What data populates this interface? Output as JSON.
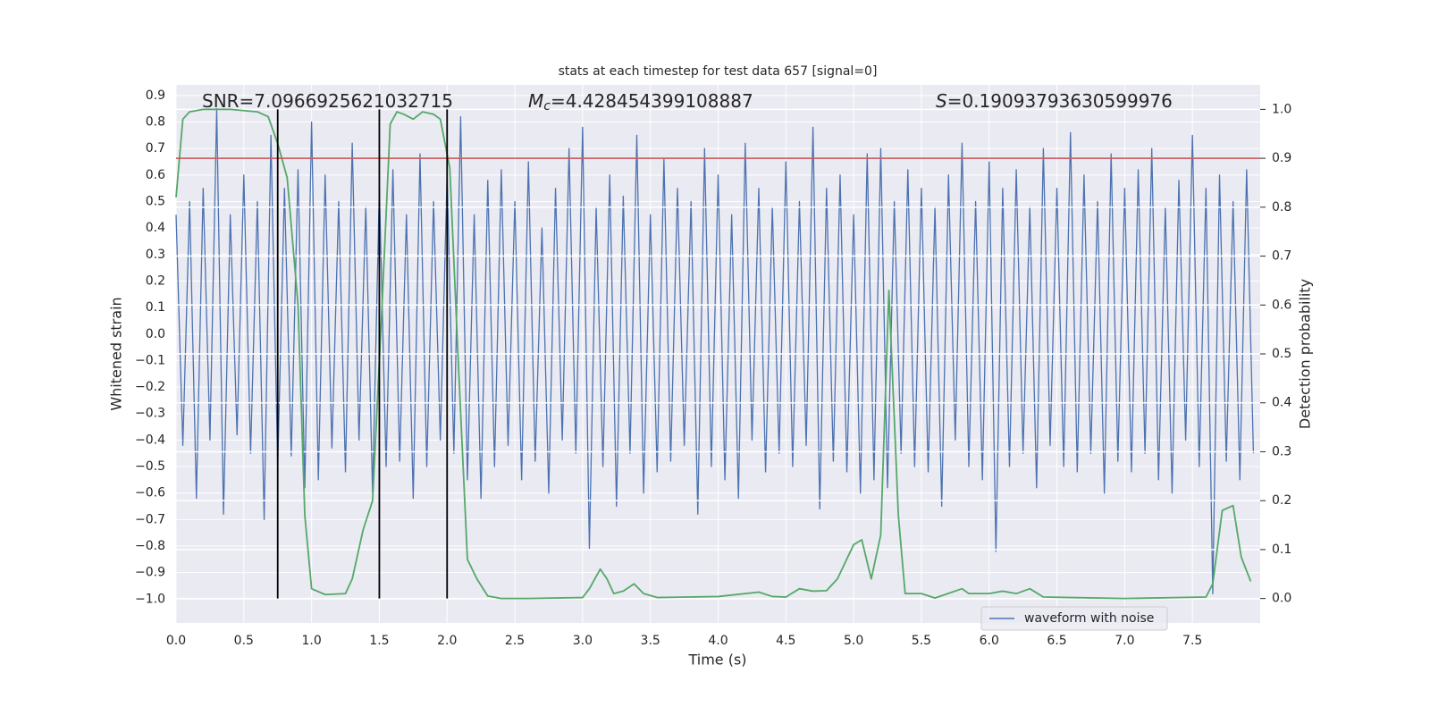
{
  "chart_data": {
    "type": "line",
    "title": "stats at each timestep for test data 657 [signal=0]",
    "xlabel": "Time (s)",
    "ylabel": "Whitened strain",
    "y2label": "Detection probability",
    "xlim": [
      0,
      8
    ],
    "ylim": [
      -1.09,
      0.94
    ],
    "y2lim": [
      -0.05,
      1.05
    ],
    "xticks": [
      {
        "value": 0,
        "label": "0.0"
      },
      0.5,
      {
        "value": 1,
        "label": "1.0"
      },
      1.5,
      {
        "value": 2,
        "label": "2.0"
      },
      2.5,
      {
        "value": 3,
        "label": "3.0"
      },
      3.5,
      {
        "value": 4,
        "label": "4.0"
      },
      4.5,
      {
        "value": 5,
        "label": "5.0"
      },
      5.5,
      {
        "value": 6,
        "label": "6.0"
      },
      6.5,
      {
        "value": 7,
        "label": "7.0"
      },
      7.5
    ],
    "yticks": [
      {
        "value": -1,
        "label": "−1.0"
      },
      {
        "value": -0.9,
        "label": "−0.9"
      },
      {
        "value": -0.8,
        "label": "−0.8"
      },
      {
        "value": -0.7,
        "label": "−0.7"
      },
      {
        "value": -0.6,
        "label": "−0.6"
      },
      {
        "value": -0.5,
        "label": "−0.5"
      },
      {
        "value": -0.4,
        "label": "−0.4"
      },
      {
        "value": -0.3,
        "label": "−0.3"
      },
      {
        "value": -0.2,
        "label": "−0.2"
      },
      {
        "value": -0.1,
        "label": "−0.1"
      },
      {
        "value": 0,
        "label": "0.0"
      },
      0.1,
      0.2,
      0.3,
      0.4,
      0.5,
      0.6,
      0.7,
      0.8,
      0.9
    ],
    "y2ticks": [
      {
        "value": 0,
        "label": "0.0"
      },
      0.1,
      0.2,
      0.3,
      0.4,
      0.5,
      0.6,
      0.7,
      0.8,
      0.9,
      {
        "value": 1,
        "label": "1.0"
      }
    ],
    "grid": true,
    "legend": "lower right",
    "annotations": [
      {
        "text": "SNR=7.0966925621032715"
      },
      {
        "symbol": "M",
        "subscript": "c",
        "text": "=4.428454399108887"
      },
      {
        "symbol": "S",
        "text": "=0.19093793630599976"
      }
    ],
    "series": [
      {
        "name": "waveform with noise",
        "color": "#4c72b0",
        "x": [
          0,
          0.05,
          0.1,
          0.15,
          0.2,
          0.25,
          0.3,
          0.35,
          0.4,
          0.45,
          0.5,
          0.55,
          0.6,
          0.65,
          0.7,
          0.75,
          0.8,
          0.85,
          0.9,
          0.95,
          1,
          1.05,
          1.1,
          1.15,
          1.2,
          1.25,
          1.3,
          1.35,
          1.4,
          1.45,
          1.5,
          1.55,
          1.6,
          1.65,
          1.7,
          1.75,
          1.8,
          1.85,
          1.9,
          1.95,
          2,
          2.05,
          2.1,
          2.15,
          2.2,
          2.25,
          2.3,
          2.35,
          2.4,
          2.45,
          2.5,
          2.55,
          2.6,
          2.65,
          2.7,
          2.75,
          2.8,
          2.85,
          2.9,
          2.95,
          3,
          3.05,
          3.1,
          3.15,
          3.2,
          3.25,
          3.3,
          3.35,
          3.4,
          3.45,
          3.5,
          3.55,
          3.6,
          3.65,
          3.7,
          3.75,
          3.8,
          3.85,
          3.9,
          3.95,
          4,
          4.05,
          4.1,
          4.15,
          4.2,
          4.25,
          4.3,
          4.35,
          4.4,
          4.45,
          4.5,
          4.55,
          4.6,
          4.65,
          4.7,
          4.75,
          4.8,
          4.85,
          4.9,
          4.95,
          5,
          5.05,
          5.1,
          5.15,
          5.2,
          5.25,
          5.3,
          5.35,
          5.4,
          5.45,
          5.5,
          5.55,
          5.6,
          5.65,
          5.7,
          5.75,
          5.8,
          5.85,
          5.9,
          5.95,
          6,
          6.05,
          6.1,
          6.15,
          6.2,
          6.25,
          6.3,
          6.35,
          6.4,
          6.45,
          6.5,
          6.55,
          6.6,
          6.65,
          6.7,
          6.75,
          6.8,
          6.85,
          6.9,
          6.95,
          7,
          7.05,
          7.1,
          7.15,
          7.2,
          7.25,
          7.3,
          7.35,
          7.4,
          7.45,
          7.5,
          7.55,
          7.6,
          7.65,
          7.7,
          7.75,
          7.8,
          7.85,
          7.9,
          7.95
        ],
        "values": [
          0.45,
          -0.42,
          0.5,
          -0.62,
          0.55,
          -0.4,
          0.85,
          -0.68,
          0.45,
          -0.38,
          0.6,
          -0.45,
          0.5,
          -0.7,
          0.75,
          -0.5,
          0.55,
          -0.46,
          0.62,
          -0.58,
          0.8,
          -0.55,
          0.6,
          -0.43,
          0.5,
          -0.52,
          0.72,
          -0.4,
          0.48,
          -0.6,
          0.55,
          -0.5,
          0.62,
          -0.48,
          0.45,
          -0.62,
          0.68,
          -0.5,
          0.5,
          -0.4,
          0.6,
          -0.45,
          0.82,
          -0.55,
          0.45,
          -0.62,
          0.58,
          -0.5,
          0.62,
          -0.42,
          0.5,
          -0.55,
          0.65,
          -0.48,
          0.4,
          -0.6,
          0.55,
          -0.4,
          0.7,
          -0.45,
          0.78,
          -0.81,
          0.48,
          -0.5,
          0.6,
          -0.65,
          0.52,
          -0.45,
          0.75,
          -0.6,
          0.45,
          -0.52,
          0.66,
          -0.48,
          0.55,
          -0.42,
          0.5,
          -0.68,
          0.7,
          -0.5,
          0.6,
          -0.55,
          0.45,
          -0.62,
          0.72,
          -0.4,
          0.55,
          -0.52,
          0.48,
          -0.45,
          0.65,
          -0.5,
          0.5,
          -0.42,
          0.78,
          -0.66,
          0.55,
          -0.48,
          0.6,
          -0.52,
          0.45,
          -0.6,
          0.68,
          -0.55,
          0.7,
          -0.58,
          0.5,
          -0.45,
          0.62,
          -0.5,
          0.55,
          -0.52,
          0.48,
          -0.65,
          0.6,
          -0.4,
          0.72,
          -0.5,
          0.5,
          -0.55,
          0.65,
          -0.82,
          0.55,
          -0.5,
          0.62,
          -0.45,
          0.48,
          -0.58,
          0.7,
          -0.42,
          0.55,
          -0.5,
          0.76,
          -0.52,
          0.6,
          -0.45,
          0.5,
          -0.6,
          0.68,
          -0.48,
          0.55,
          -0.52,
          0.62,
          -0.45,
          0.7,
          -0.55,
          0.48,
          -0.6,
          0.58,
          -0.4,
          0.75,
          -0.5,
          0.55,
          -0.98,
          0.6,
          -0.48,
          0.5,
          -0.55,
          0.62,
          -0.45
        ]
      },
      {
        "color": "#55a868",
        "axis": "y2",
        "x": [
          0,
          0.05,
          0.1,
          0.2,
          0.4,
          0.6,
          0.68,
          0.75,
          0.82,
          0.9,
          0.95,
          1,
          1.1,
          1.25,
          1.3,
          1.38,
          1.45,
          1.52,
          1.58,
          1.63,
          1.68,
          1.75,
          1.82,
          1.9,
          1.95,
          2.02,
          2.08,
          2.15,
          2.22,
          2.3,
          2.4,
          2.6,
          3,
          3.05,
          3.13,
          3.18,
          3.23,
          3.3,
          3.38,
          3.45,
          3.55,
          4,
          4.3,
          4.4,
          4.5,
          4.6,
          4.7,
          4.8,
          4.88,
          5,
          5.06,
          5.13,
          5.2,
          5.26,
          5.33,
          5.38,
          5.5,
          5.6,
          5.8,
          5.85,
          6,
          6.1,
          6.2,
          6.3,
          6.4,
          6.6,
          7,
          7.6,
          7.65,
          7.72,
          7.8,
          7.86,
          7.93
        ],
        "values": [
          0.82,
          0.98,
          0.995,
          1,
          1,
          0.995,
          0.985,
          0.93,
          0.86,
          0.6,
          0.17,
          0.02,
          0.008,
          0.01,
          0.04,
          0.14,
          0.2,
          0.6,
          0.97,
          0.995,
          0.99,
          0.98,
          0.995,
          0.99,
          0.98,
          0.88,
          0.5,
          0.08,
          0.04,
          0.005,
          0,
          0,
          0.002,
          0.02,
          0.06,
          0.04,
          0.01,
          0.015,
          0.03,
          0.01,
          0.002,
          0.004,
          0.013,
          0.004,
          0.003,
          0.02,
          0.015,
          0.016,
          0.04,
          0.11,
          0.12,
          0.04,
          0.13,
          0.63,
          0.17,
          0.01,
          0.01,
          0.001,
          0.02,
          0.01,
          0.01,
          0.015,
          0.01,
          0.02,
          0.003,
          0.002,
          0,
          0.003,
          0.03,
          0.18,
          0.19,
          0.085,
          0.035
        ]
      }
    ],
    "hline": {
      "value": 0.9,
      "axis": "y2",
      "color": "#c44e52"
    },
    "vlines": {
      "x": [
        0.75,
        1.5,
        2
      ],
      "axis": "y2",
      "ymin": 0,
      "ymax": 1,
      "color": "#000000"
    }
  }
}
